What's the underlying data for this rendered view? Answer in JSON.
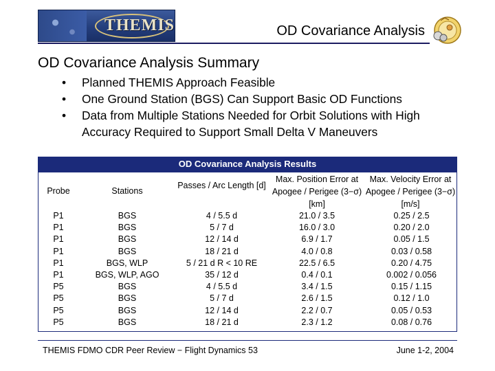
{
  "header": {
    "logo_text": "THEMIS",
    "page_title": "OD Covariance Analysis"
  },
  "heading": "OD Covariance Analysis Summary",
  "bullets": [
    {
      "marker": "•",
      "text": "Planned THEMIS Approach Feasible"
    },
    {
      "marker": "•",
      "text": "One Ground Station (BGS) Can Support Basic OD Functions"
    },
    {
      "marker": "•",
      "text": "Data from Multiple Stations Needed for Orbit Solutions with High Accuracy Required to Support Small Delta V Maneuvers"
    }
  ],
  "results": {
    "title": "OD Covariance Analysis Results",
    "headers": [
      "Probe",
      "Stations",
      "Passes / Arc Length [d]",
      "Max. Position Error at Apogee / Perigee (3−σ) [km]",
      "Max. Velocity Error at Apogee / Perigee (3−σ) [m/s]"
    ],
    "rows": [
      [
        "P1",
        "BGS",
        "4 / 5.5 d",
        "21.0 / 3.5",
        "0.25 / 2.5"
      ],
      [
        "P1",
        "BGS",
        "5 / 7 d",
        "16.0 / 3.0",
        "0.20 / 2.0"
      ],
      [
        "P1",
        "BGS",
        "12 / 14 d",
        "6.9 / 1.7",
        "0.05 / 1.5"
      ],
      [
        "P1",
        "BGS",
        "18 / 21 d",
        "4.0 / 0.8",
        "0.03 / 0.58"
      ],
      [
        "P1",
        "BGS, WLP",
        "5 / 21 d  R < 10 RE",
        "22.5 / 6.5",
        "0.20 / 4.75"
      ],
      [
        "P1",
        "BGS, WLP, AGO",
        "35 / 12 d",
        "0.4 / 0.1",
        "0.002 / 0.056"
      ],
      [
        "P5",
        "BGS",
        "4 / 5.5 d",
        "3.4 / 1.5",
        "0.15 / 1.15"
      ],
      [
        "P5",
        "BGS",
        "5 / 7 d",
        "2.6 / 1.5",
        "0.12 / 1.0"
      ],
      [
        "P5",
        "BGS",
        "12 / 14 d",
        "2.2 / 0.7",
        "0.05 / 0.53"
      ],
      [
        "P5",
        "BGS",
        "18 / 21 d",
        "2.3 / 1.2",
        "0.08 / 0.76"
      ]
    ]
  },
  "footer": {
    "left": "THEMIS FDMO CDR Peer Review − Flight Dynamics 53",
    "right": "June 1-2, 2004"
  }
}
